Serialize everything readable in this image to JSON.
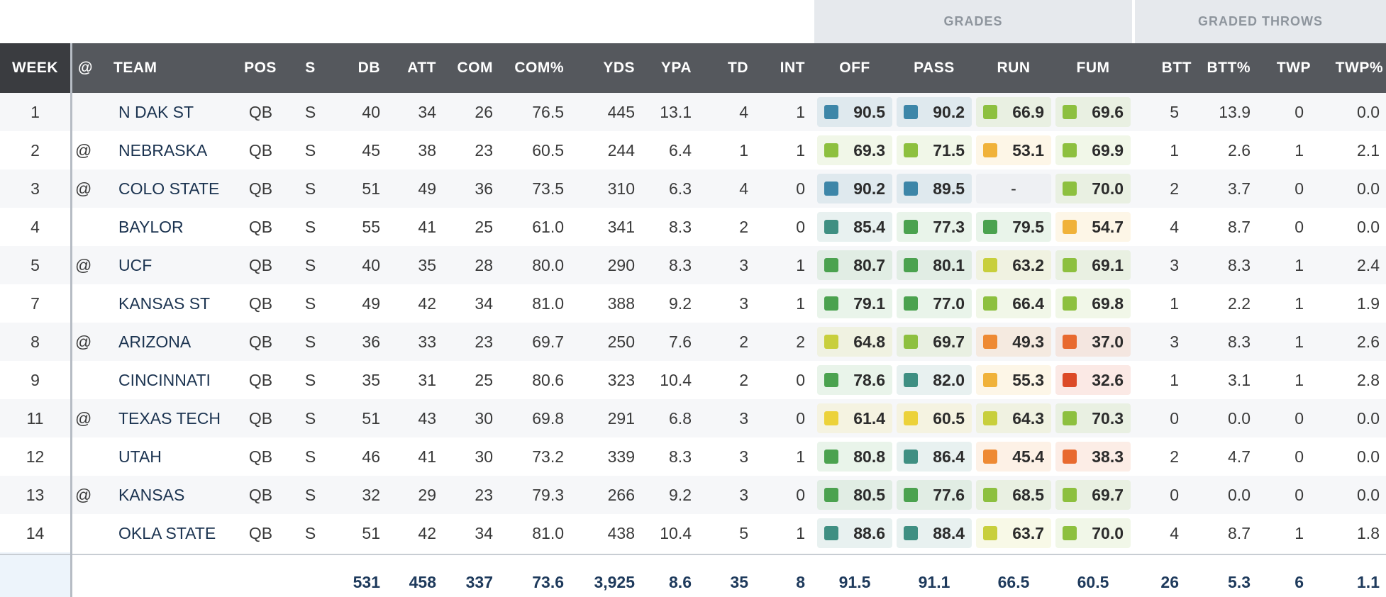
{
  "groups": {
    "grades": "GRADES",
    "graded_throws": "GRADED THROWS"
  },
  "columns": {
    "week": "WEEK",
    "at": "@",
    "team": "TEAM",
    "pos": "POS",
    "s": "S",
    "db": "DB",
    "att": "ATT",
    "com": "COM",
    "com_pct": "COM%",
    "yds": "YDS",
    "ypa": "YPA",
    "td": "TD",
    "int": "INT",
    "off": "OFF",
    "pass": "PASS",
    "run": "RUN",
    "fum": "FUM",
    "btt": "BTT",
    "btt_pct": "BTT%",
    "twp": "TWP",
    "twp_pct": "TWP%"
  },
  "grade_colors": {
    "blue": "#3d86a8",
    "teal": "#3f8f82",
    "darkgreen": "#4ba24f",
    "lightgreen": "#8dc03f",
    "yellowgreen": "#c8cf3c",
    "yellow": "#ecd23a",
    "amber": "#f0b23a",
    "orange": "#ee8a33",
    "darkorange": "#e86a2f",
    "red": "#dc4a27"
  },
  "rows": [
    {
      "week": "1",
      "at": "",
      "team": "N DAK ST",
      "pos": "QB",
      "s": "S",
      "db": "40",
      "att": "34",
      "com": "26",
      "com_pct": "76.5",
      "yds": "445",
      "ypa": "13.1",
      "td": "4",
      "int": "1",
      "off": {
        "value": "90.5",
        "color": "blue"
      },
      "pass": {
        "value": "90.2",
        "color": "blue"
      },
      "run": {
        "value": "66.9",
        "color": "lightgreen"
      },
      "fum": {
        "value": "69.6",
        "color": "lightgreen"
      },
      "btt": "5",
      "btt_pct": "13.9",
      "twp": "0",
      "twp_pct": "0.0"
    },
    {
      "week": "2",
      "at": "@",
      "team": "NEBRASKA",
      "pos": "QB",
      "s": "S",
      "db": "45",
      "att": "38",
      "com": "23",
      "com_pct": "60.5",
      "yds": "244",
      "ypa": "6.4",
      "td": "1",
      "int": "1",
      "off": {
        "value": "69.3",
        "color": "lightgreen"
      },
      "pass": {
        "value": "71.5",
        "color": "lightgreen"
      },
      "run": {
        "value": "53.1",
        "color": "amber"
      },
      "fum": {
        "value": "69.9",
        "color": "lightgreen"
      },
      "btt": "1",
      "btt_pct": "2.6",
      "twp": "1",
      "twp_pct": "2.1"
    },
    {
      "week": "3",
      "at": "@",
      "team": "COLO STATE",
      "pos": "QB",
      "s": "S",
      "db": "51",
      "att": "49",
      "com": "36",
      "com_pct": "73.5",
      "yds": "310",
      "ypa": "6.3",
      "td": "4",
      "int": "0",
      "off": {
        "value": "90.2",
        "color": "blue"
      },
      "pass": {
        "value": "89.5",
        "color": "blue"
      },
      "run": {
        "value": "-",
        "color": ""
      },
      "fum": {
        "value": "70.0",
        "color": "lightgreen"
      },
      "btt": "2",
      "btt_pct": "3.7",
      "twp": "0",
      "twp_pct": "0.0"
    },
    {
      "week": "4",
      "at": "",
      "team": "BAYLOR",
      "pos": "QB",
      "s": "S",
      "db": "55",
      "att": "41",
      "com": "25",
      "com_pct": "61.0",
      "yds": "341",
      "ypa": "8.3",
      "td": "2",
      "int": "0",
      "off": {
        "value": "85.4",
        "color": "teal"
      },
      "pass": {
        "value": "77.3",
        "color": "darkgreen"
      },
      "run": {
        "value": "79.5",
        "color": "darkgreen"
      },
      "fum": {
        "value": "54.7",
        "color": "amber"
      },
      "btt": "4",
      "btt_pct": "8.7",
      "twp": "0",
      "twp_pct": "0.0"
    },
    {
      "week": "5",
      "at": "@",
      "team": "UCF",
      "pos": "QB",
      "s": "S",
      "db": "40",
      "att": "35",
      "com": "28",
      "com_pct": "80.0",
      "yds": "290",
      "ypa": "8.3",
      "td": "3",
      "int": "1",
      "off": {
        "value": "80.7",
        "color": "darkgreen"
      },
      "pass": {
        "value": "80.1",
        "color": "darkgreen"
      },
      "run": {
        "value": "63.2",
        "color": "yellowgreen"
      },
      "fum": {
        "value": "69.1",
        "color": "lightgreen"
      },
      "btt": "3",
      "btt_pct": "8.3",
      "twp": "1",
      "twp_pct": "2.4"
    },
    {
      "week": "7",
      "at": "",
      "team": "KANSAS ST",
      "pos": "QB",
      "s": "S",
      "db": "49",
      "att": "42",
      "com": "34",
      "com_pct": "81.0",
      "yds": "388",
      "ypa": "9.2",
      "td": "3",
      "int": "1",
      "off": {
        "value": "79.1",
        "color": "darkgreen"
      },
      "pass": {
        "value": "77.0",
        "color": "darkgreen"
      },
      "run": {
        "value": "66.4",
        "color": "lightgreen"
      },
      "fum": {
        "value": "69.8",
        "color": "lightgreen"
      },
      "btt": "1",
      "btt_pct": "2.2",
      "twp": "1",
      "twp_pct": "1.9"
    },
    {
      "week": "8",
      "at": "@",
      "team": "ARIZONA",
      "pos": "QB",
      "s": "S",
      "db": "36",
      "att": "33",
      "com": "23",
      "com_pct": "69.7",
      "yds": "250",
      "ypa": "7.6",
      "td": "2",
      "int": "2",
      "off": {
        "value": "64.8",
        "color": "yellowgreen"
      },
      "pass": {
        "value": "69.7",
        "color": "lightgreen"
      },
      "run": {
        "value": "49.3",
        "color": "orange"
      },
      "fum": {
        "value": "37.0",
        "color": "darkorange"
      },
      "btt": "3",
      "btt_pct": "8.3",
      "twp": "1",
      "twp_pct": "2.6"
    },
    {
      "week": "9",
      "at": "",
      "team": "CINCINNATI",
      "pos": "QB",
      "s": "S",
      "db": "35",
      "att": "31",
      "com": "25",
      "com_pct": "80.6",
      "yds": "323",
      "ypa": "10.4",
      "td": "2",
      "int": "0",
      "off": {
        "value": "78.6",
        "color": "darkgreen"
      },
      "pass": {
        "value": "82.0",
        "color": "teal"
      },
      "run": {
        "value": "55.3",
        "color": "amber"
      },
      "fum": {
        "value": "32.6",
        "color": "red"
      },
      "btt": "1",
      "btt_pct": "3.1",
      "twp": "1",
      "twp_pct": "2.8"
    },
    {
      "week": "11",
      "at": "@",
      "team": "TEXAS TECH",
      "pos": "QB",
      "s": "S",
      "db": "51",
      "att": "43",
      "com": "30",
      "com_pct": "69.8",
      "yds": "291",
      "ypa": "6.8",
      "td": "3",
      "int": "0",
      "off": {
        "value": "61.4",
        "color": "yellow"
      },
      "pass": {
        "value": "60.5",
        "color": "yellow"
      },
      "run": {
        "value": "64.3",
        "color": "yellowgreen"
      },
      "fum": {
        "value": "70.3",
        "color": "lightgreen"
      },
      "btt": "0",
      "btt_pct": "0.0",
      "twp": "0",
      "twp_pct": "0.0"
    },
    {
      "week": "12",
      "at": "",
      "team": "UTAH",
      "pos": "QB",
      "s": "S",
      "db": "46",
      "att": "41",
      "com": "30",
      "com_pct": "73.2",
      "yds": "339",
      "ypa": "8.3",
      "td": "3",
      "int": "1",
      "off": {
        "value": "80.8",
        "color": "darkgreen"
      },
      "pass": {
        "value": "86.4",
        "color": "teal"
      },
      "run": {
        "value": "45.4",
        "color": "orange"
      },
      "fum": {
        "value": "38.3",
        "color": "darkorange"
      },
      "btt": "2",
      "btt_pct": "4.7",
      "twp": "0",
      "twp_pct": "0.0"
    },
    {
      "week": "13",
      "at": "@",
      "team": "KANSAS",
      "pos": "QB",
      "s": "S",
      "db": "32",
      "att": "29",
      "com": "23",
      "com_pct": "79.3",
      "yds": "266",
      "ypa": "9.2",
      "td": "3",
      "int": "0",
      "off": {
        "value": "80.5",
        "color": "darkgreen"
      },
      "pass": {
        "value": "77.6",
        "color": "darkgreen"
      },
      "run": {
        "value": "68.5",
        "color": "lightgreen"
      },
      "fum": {
        "value": "69.7",
        "color": "lightgreen"
      },
      "btt": "0",
      "btt_pct": "0.0",
      "twp": "0",
      "twp_pct": "0.0"
    },
    {
      "week": "14",
      "at": "",
      "team": "OKLA STATE",
      "pos": "QB",
      "s": "S",
      "db": "51",
      "att": "42",
      "com": "34",
      "com_pct": "81.0",
      "yds": "438",
      "ypa": "10.4",
      "td": "5",
      "int": "1",
      "off": {
        "value": "88.6",
        "color": "teal"
      },
      "pass": {
        "value": "88.4",
        "color": "teal"
      },
      "run": {
        "value": "63.7",
        "color": "yellowgreen"
      },
      "fum": {
        "value": "70.0",
        "color": "lightgreen"
      },
      "btt": "4",
      "btt_pct": "8.7",
      "twp": "1",
      "twp_pct": "1.8"
    }
  ],
  "totals": {
    "db": "531",
    "att": "458",
    "com": "337",
    "com_pct": "73.6",
    "yds": "3,925",
    "ypa": "8.6",
    "td": "35",
    "int": "8",
    "off": "91.5",
    "pass": "91.1",
    "run": "66.5",
    "fum": "60.5",
    "btt": "26",
    "btt_pct": "5.3",
    "twp": "6",
    "twp_pct": "1.1"
  }
}
